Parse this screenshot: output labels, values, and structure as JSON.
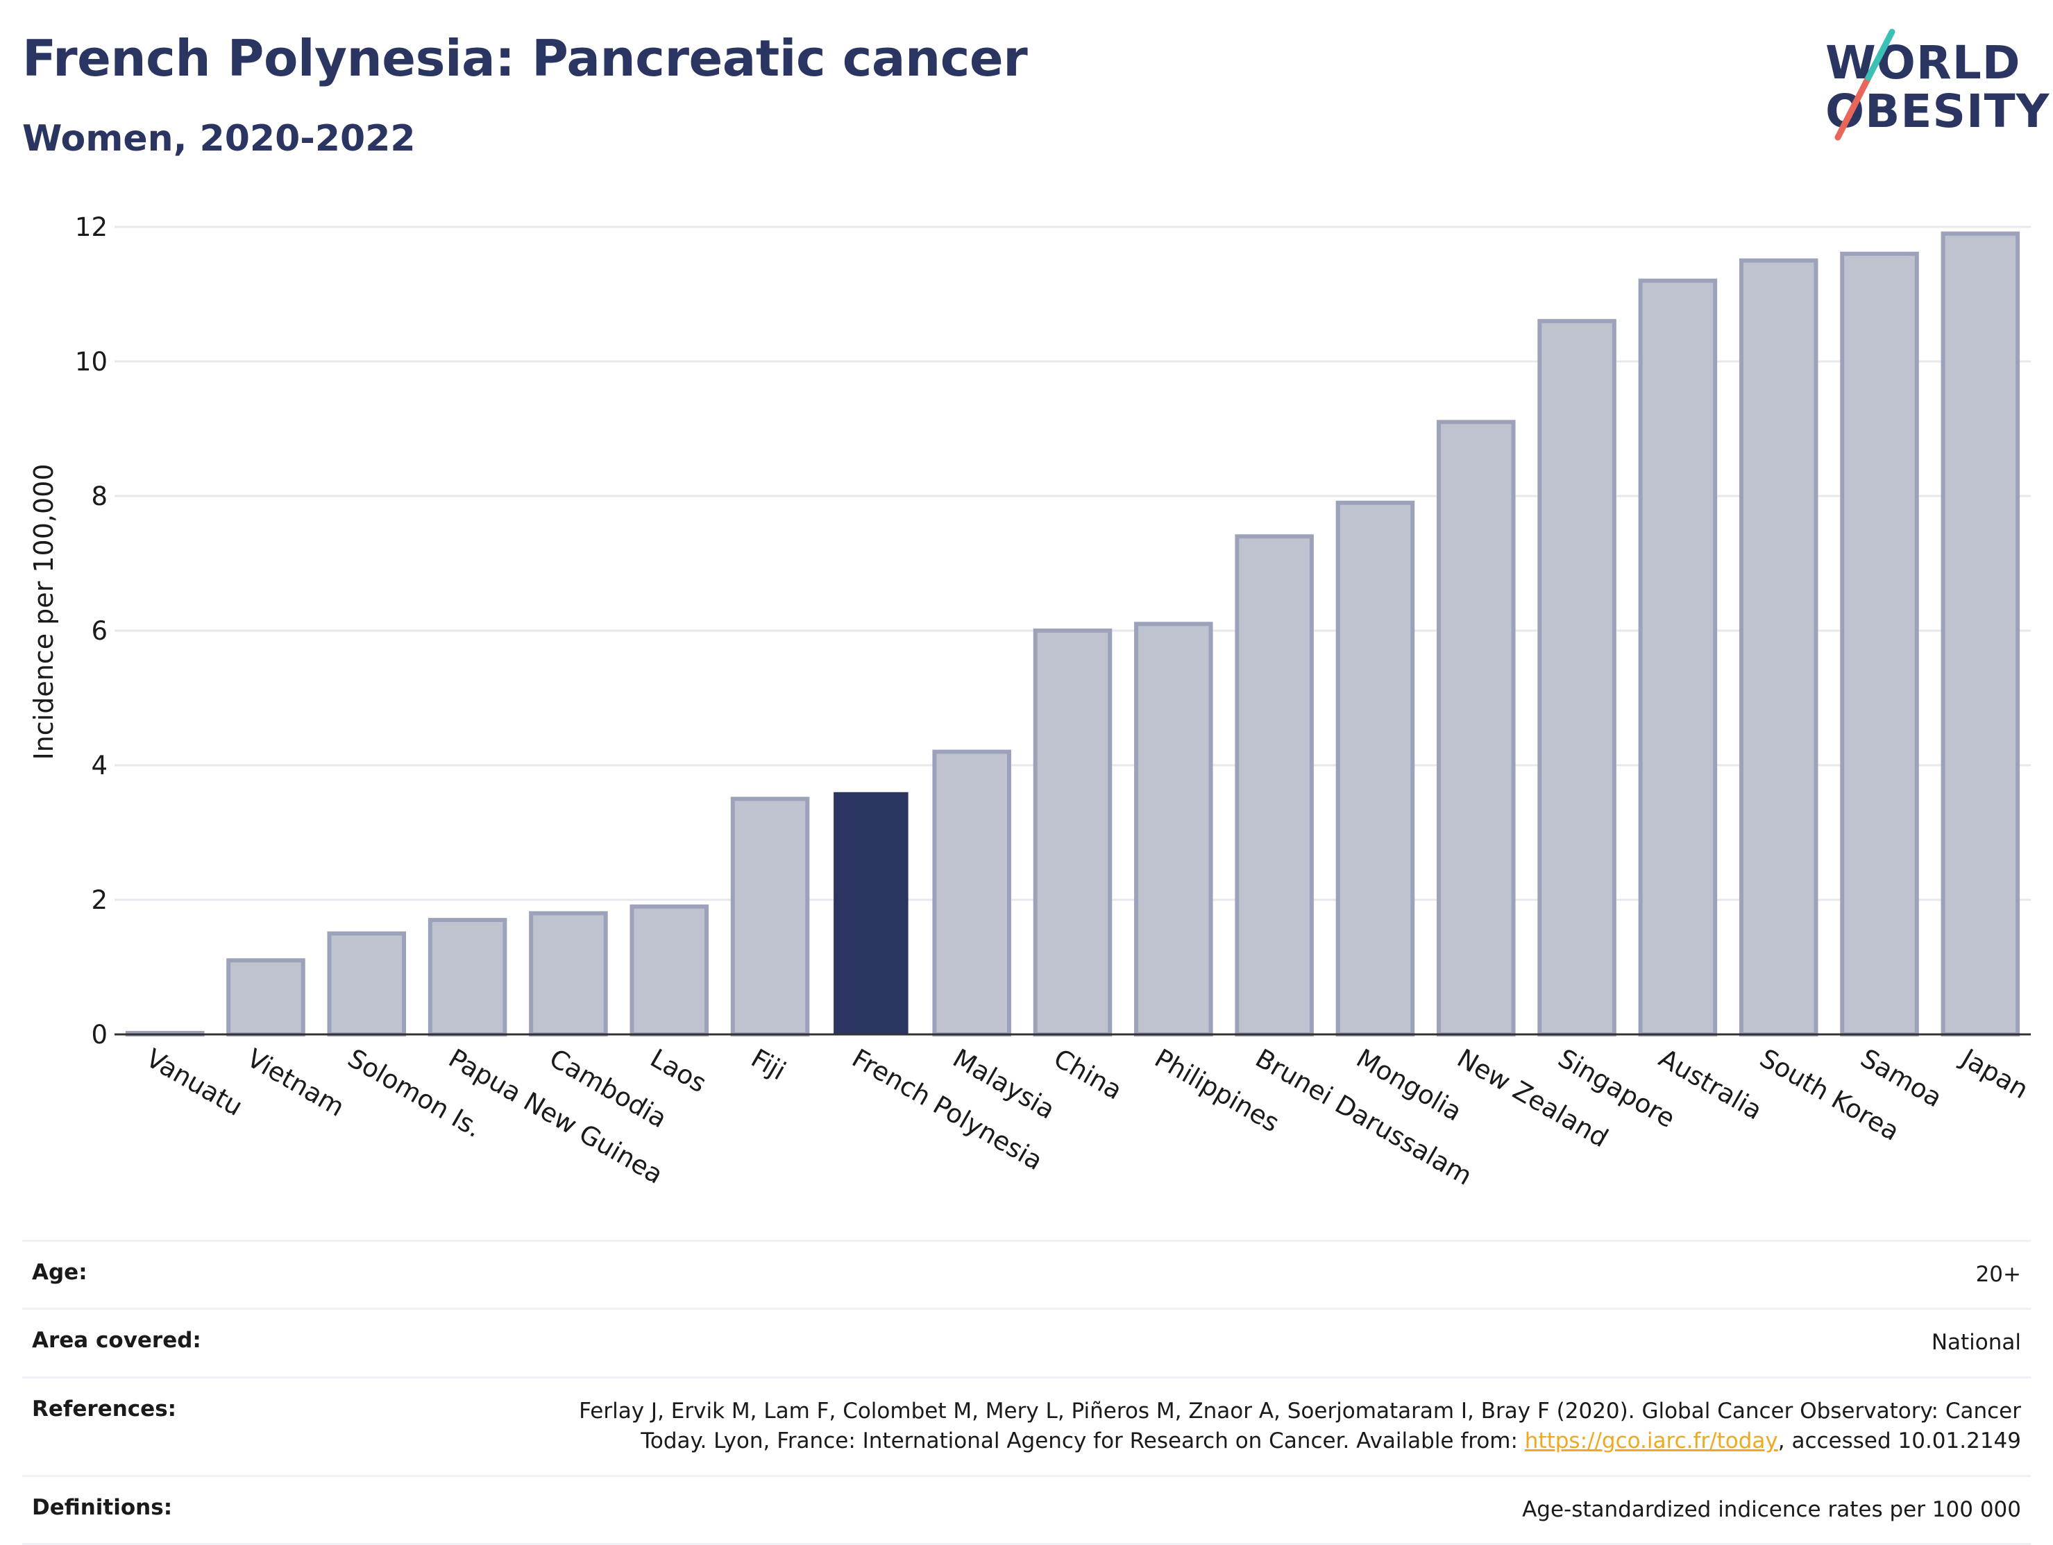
{
  "header": {
    "title": "French Polynesia: Pancreatic cancer",
    "subtitle": "Women, 2020-2022"
  },
  "logo": {
    "line1": "WORLD",
    "line2": "OBESITY",
    "accent_colors": [
      "#e8675a",
      "#3cbfb4"
    ]
  },
  "chart_data": {
    "type": "bar",
    "title": "French Polynesia: Pancreatic cancer",
    "subtitle": "Women, 2020-2022",
    "xlabel": "",
    "ylabel": "Incidence per 100,000",
    "ylim": [
      0,
      12
    ],
    "yticks": [
      0,
      2,
      4,
      6,
      8,
      10,
      12
    ],
    "grid": true,
    "categories": [
      "Vanuatu",
      "Vietnam",
      "Solomon Is.",
      "Papua New Guinea",
      "Cambodia",
      "Laos",
      "Fiji",
      "French Polynesia",
      "Malaysia",
      "China",
      "Philippines",
      "Brunei Darussalam",
      "Mongolia",
      "New Zealand",
      "Singapore",
      "Australia",
      "South Korea",
      "Samoa",
      "Japan"
    ],
    "values": [
      0.0,
      1.1,
      1.5,
      1.7,
      1.8,
      1.9,
      3.5,
      3.6,
      4.2,
      6.0,
      6.1,
      7.4,
      7.9,
      9.1,
      10.6,
      11.2,
      11.5,
      11.6,
      11.9
    ],
    "highlight": "French Polynesia",
    "colors": {
      "bar": "#bfc3d0",
      "bar_border": "#9ca2ba",
      "highlight": "#2b3562",
      "grid": "#e8e8ec",
      "axis": "#333333"
    }
  },
  "info": {
    "age_label": "Age:",
    "age_value": "20+",
    "area_label": "Area covered:",
    "area_value": "National",
    "references_label": "References:",
    "references_line1": "Ferlay J, Ervik M, Lam F, Colombet M, Mery L, Piñeros M, Znaor A, Soerjomataram I, Bray F (2020). Global Cancer Observatory: Cancer",
    "references_line2_pre": "Today. Lyon, France: International Agency for Research on Cancer. Available from: ",
    "references_link": "https://gco.iarc.fr/today",
    "references_line2_post": ", accessed 10.01.2149",
    "definitions_label": "Definitions:",
    "definitions_value": "Age-standardized indicence rates per 100 000"
  }
}
